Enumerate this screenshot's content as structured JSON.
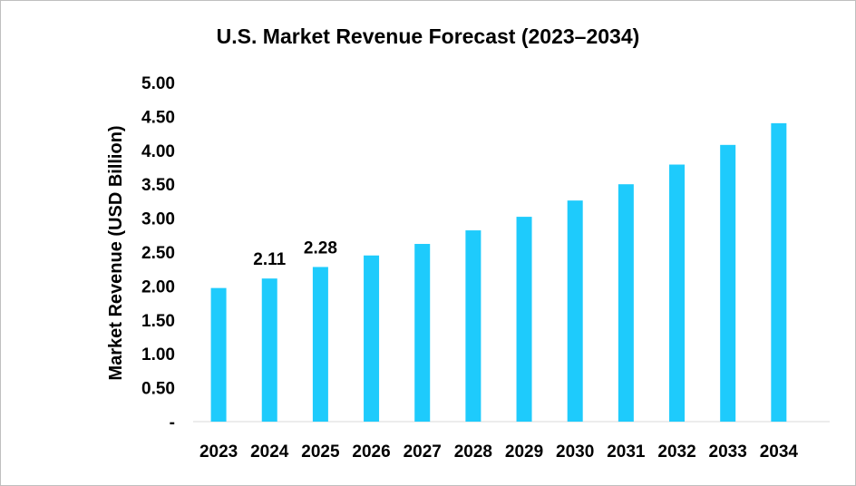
{
  "chart_data": {
    "type": "bar",
    "title": "U.S. Market Revenue Forecast (2023–2034)",
    "xlabel": "",
    "ylabel": "Market Revenue (USD Billion)",
    "categories": [
      "2023",
      "2024",
      "2025",
      "2026",
      "2027",
      "2028",
      "2029",
      "2030",
      "2031",
      "2032",
      "2033",
      "2034"
    ],
    "values": [
      1.97,
      2.11,
      2.28,
      2.45,
      2.62,
      2.82,
      3.02,
      3.26,
      3.5,
      3.79,
      4.08,
      4.4
    ],
    "data_labels": [
      "",
      "2.11",
      "2.28",
      "",
      "",
      "",
      "",
      "",
      "",
      "",
      "",
      ""
    ],
    "ylim": [
      0,
      5
    ],
    "yticks": [
      0,
      0.5,
      1,
      1.5,
      2,
      2.5,
      3,
      3.5,
      4,
      4.5,
      5
    ],
    "ytick_labels": [
      "-",
      "0.50",
      "1.00",
      "1.50",
      "2.00",
      "2.50",
      "3.00",
      "3.50",
      "4.00",
      "4.50",
      "5.00"
    ],
    "grid": false,
    "legend": "none",
    "bar_color": "#1ecbfc"
  }
}
